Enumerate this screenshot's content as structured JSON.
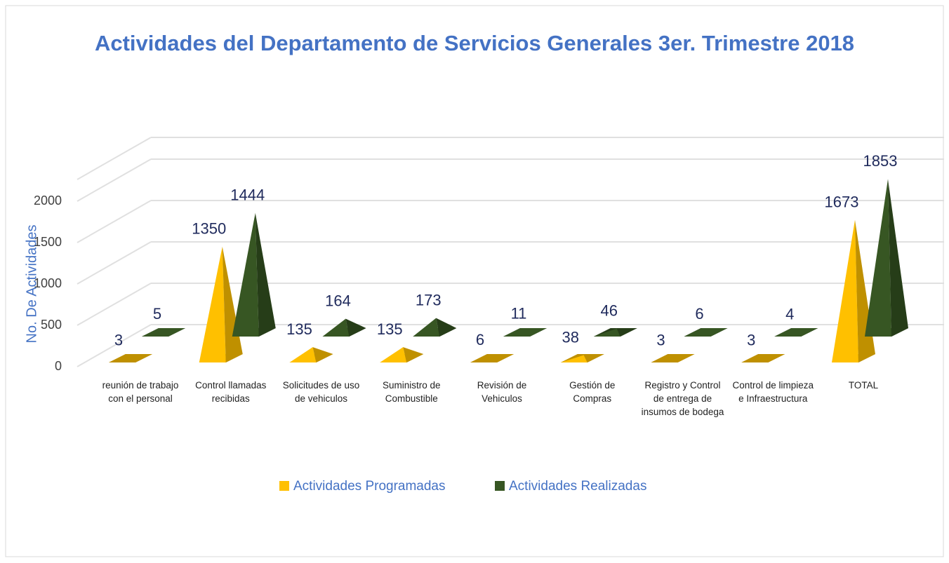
{
  "chart_data": {
    "type": "pyramid3d",
    "title": "Actividades del Departamento de Servicios Generales 3er. Trimestre 2018",
    "y_label": "No. De Actividades",
    "categories": [
      "reunión de trabajo con el personal",
      "Control llamadas recibidas",
      "Solicitudes de uso de vehiculos",
      "Suministro de Combustible",
      "Revisión de Vehiculos",
      "Gestión de Compras",
      "Registro y Control de entrega de insumos de bodega",
      "Control de limpieza e Infraestructura",
      "TOTAL"
    ],
    "series": [
      {
        "name": "Actividades Programadas",
        "color": "#ffc000",
        "values": [
          3,
          1350,
          135,
          135,
          6,
          38,
          3,
          3,
          1673
        ]
      },
      {
        "name": "Actividades Realizadas",
        "color": "#375623",
        "values": [
          5,
          1444,
          164,
          173,
          11,
          46,
          6,
          4,
          1853
        ]
      }
    ],
    "ylim": [
      0,
      2500
    ],
    "yticks": [
      0,
      500,
      1000,
      1500,
      2000
    ],
    "grid": true,
    "legend": "bottom"
  }
}
